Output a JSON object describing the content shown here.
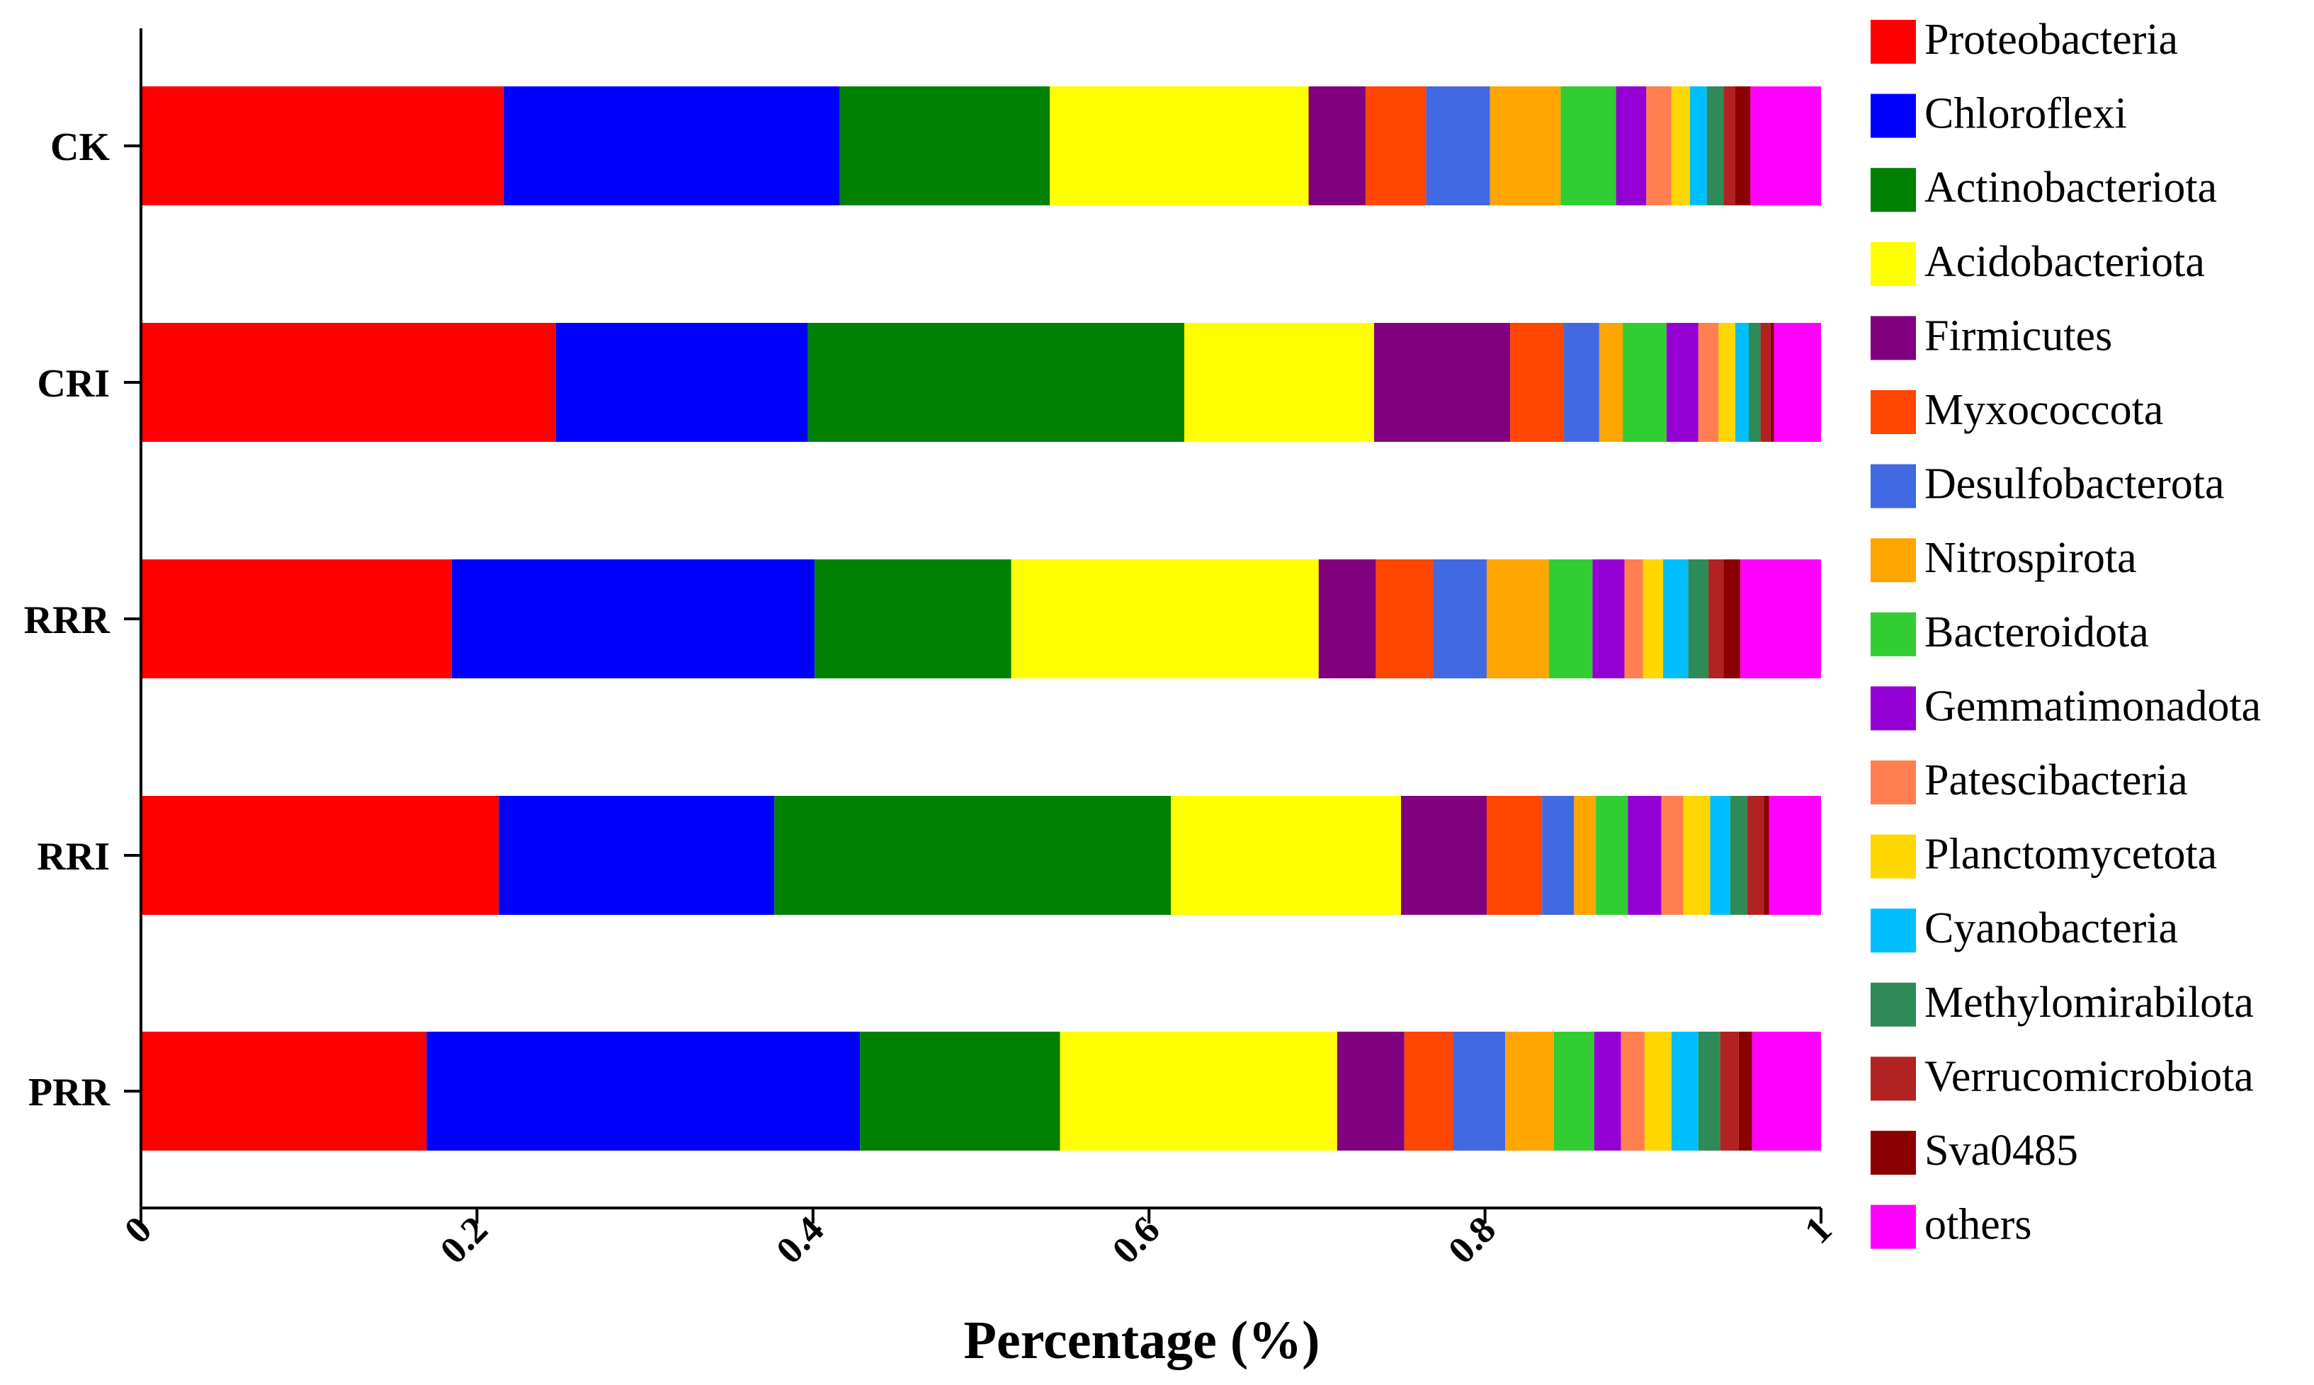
{
  "chart_data": {
    "type": "bar",
    "orientation": "horizontal",
    "stacked": true,
    "title": "",
    "xlabel": "Percentage (%)",
    "ylabel": "",
    "xlim": [
      0,
      1
    ],
    "x_ticks": [
      "0",
      "0.2",
      "0.4",
      "0.6",
      "0.8",
      "1"
    ],
    "x_tick_values": [
      0,
      0.2,
      0.4,
      0.6,
      0.8,
      1
    ],
    "categories": [
      "CK",
      "CRI",
      "RRR",
      "RRI",
      "PRR"
    ],
    "grid": false,
    "legend_position": "right",
    "series": [
      {
        "name": "Proteobacteria",
        "color": "#ff0000",
        "values": [
          0.216,
          0.247,
          0.185,
          0.213,
          0.17
        ]
      },
      {
        "name": "Chloroflexi",
        "color": "#0000ff",
        "values": [
          0.2,
          0.15,
          0.216,
          0.164,
          0.258
        ]
      },
      {
        "name": "Actinobacteriota",
        "color": "#008000",
        "values": [
          0.125,
          0.224,
          0.117,
          0.236,
          0.119
        ]
      },
      {
        "name": "Acidobacteriota",
        "color": "#ffff00",
        "values": [
          0.154,
          0.113,
          0.183,
          0.137,
          0.165
        ]
      },
      {
        "name": "Firmicutes",
        "color": "#800080",
        "values": [
          0.034,
          0.081,
          0.034,
          0.051,
          0.04
        ]
      },
      {
        "name": "Myxococcota",
        "color": "#ff4500",
        "values": [
          0.036,
          0.032,
          0.034,
          0.033,
          0.029
        ]
      },
      {
        "name": "Desulfobacterota",
        "color": "#4169e1",
        "values": [
          0.038,
          0.021,
          0.032,
          0.019,
          0.031
        ]
      },
      {
        "name": "Nitrospirota",
        "color": "#ffa500",
        "values": [
          0.042,
          0.014,
          0.037,
          0.013,
          0.029
        ]
      },
      {
        "name": "Bacteroidota",
        "color": "#32cd32",
        "values": [
          0.033,
          0.026,
          0.026,
          0.019,
          0.024
        ]
      },
      {
        "name": "Gemmatimonadota",
        "color": "#9400d3",
        "values": [
          0.018,
          0.019,
          0.019,
          0.02,
          0.016
        ]
      },
      {
        "name": "Patescibacteria",
        "color": "#ff7f50",
        "values": [
          0.015,
          0.012,
          0.011,
          0.013,
          0.014
        ]
      },
      {
        "name": "Planctomycetota",
        "color": "#ffd700",
        "values": [
          0.011,
          0.01,
          0.012,
          0.016,
          0.016
        ]
      },
      {
        "name": "Cyanobacteria",
        "color": "#00bfff",
        "values": [
          0.01,
          0.008,
          0.015,
          0.012,
          0.016
        ]
      },
      {
        "name": "Methylomirabilota",
        "color": "#2e8b57",
        "values": [
          0.01,
          0.007,
          0.012,
          0.01,
          0.013
        ]
      },
      {
        "name": "Verrucomicrobiota",
        "color": "#b22222",
        "values": [
          0.007,
          0.006,
          0.009,
          0.01,
          0.011
        ]
      },
      {
        "name": "Sva0485",
        "color": "#8b0000",
        "values": [
          0.009,
          0.002,
          0.01,
          0.003,
          0.008
        ]
      },
      {
        "name": "others",
        "color": "#ff00ff",
        "values": [
          0.042,
          0.028,
          0.048,
          0.031,
          0.041
        ]
      }
    ]
  }
}
